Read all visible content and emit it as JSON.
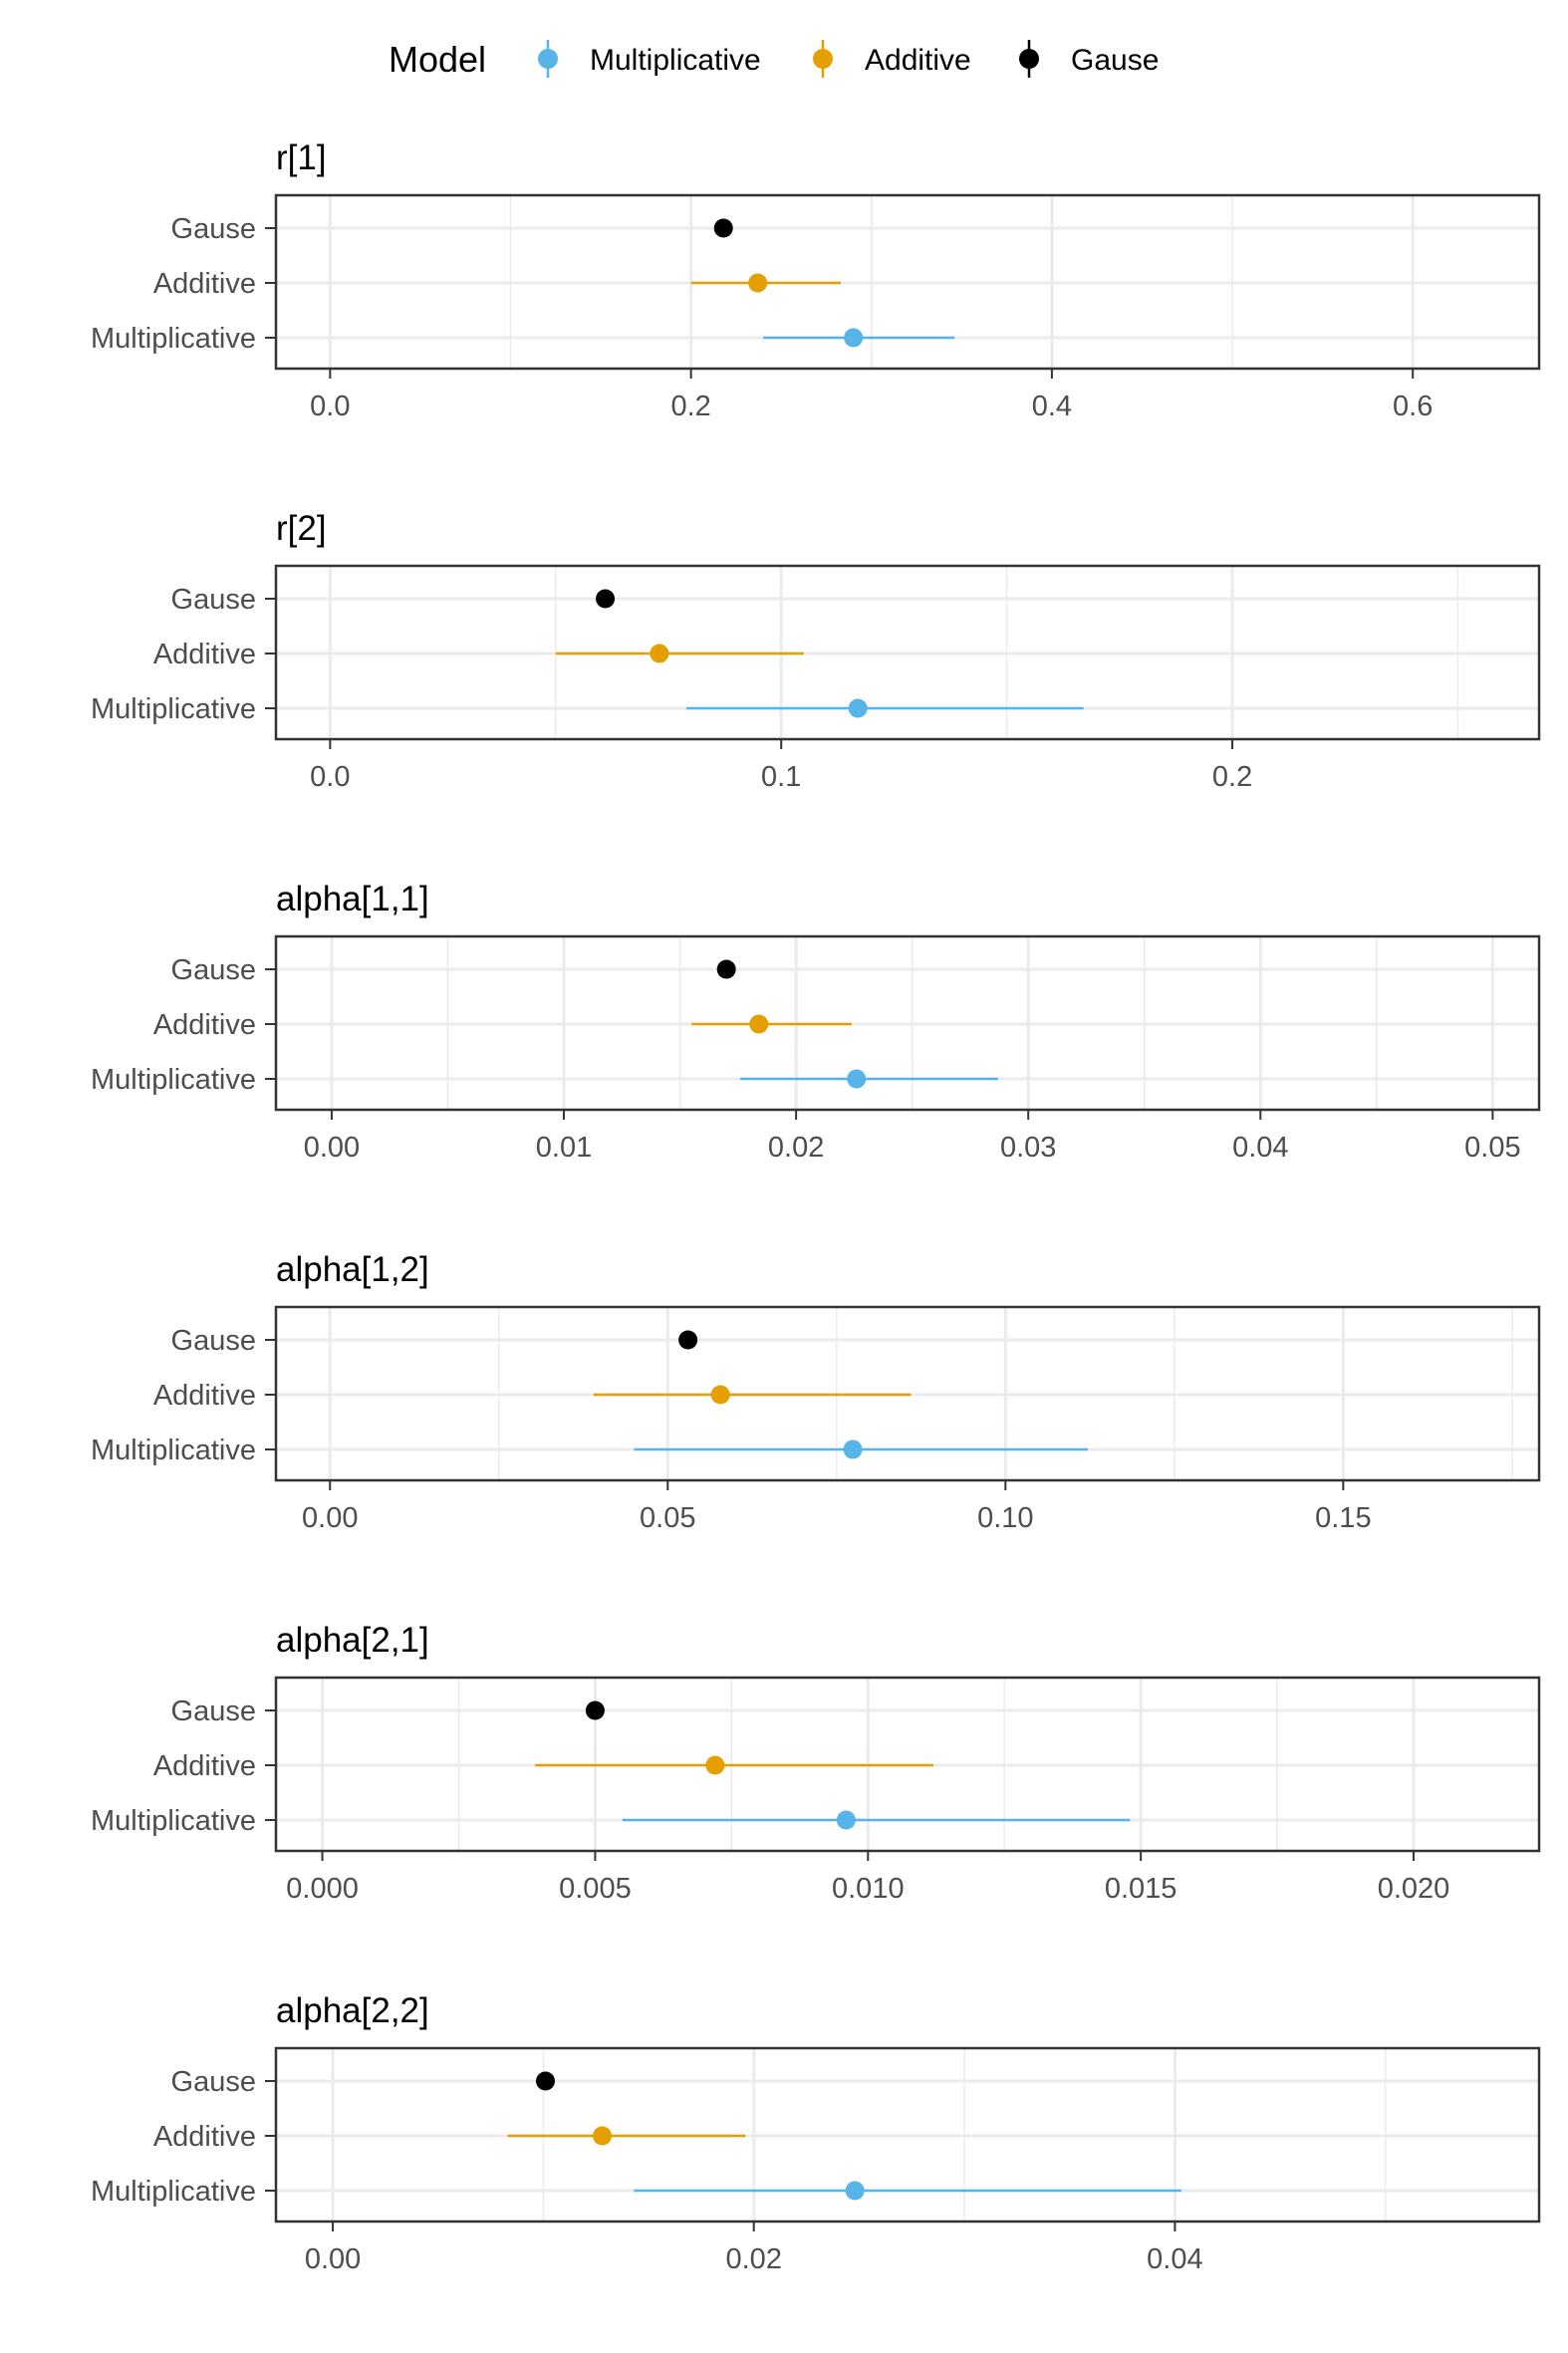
{
  "chart_data": {
    "type": "forest",
    "legend": {
      "title": "Model",
      "position": "top",
      "entries": [
        {
          "name": "Multiplicative",
          "color": "#56B4E9"
        },
        {
          "name": "Additive",
          "color": "#E69F00"
        },
        {
          "name": "Gause",
          "color": "#000000"
        }
      ]
    },
    "categories": [
      "Gause",
      "Additive",
      "Multiplicative"
    ],
    "panels": [
      {
        "title": "r[1]",
        "xlim": [
          -0.03,
          0.67
        ],
        "ticks": [
          0.0,
          0.2,
          0.4,
          0.6
        ],
        "tick_labels": [
          "0.0",
          "0.2",
          "0.4",
          "0.6"
        ],
        "minor_ticks": [
          0.1,
          0.3,
          0.5
        ],
        "estimates": [
          {
            "model": "Gause",
            "value": 0.218,
            "low": null,
            "high": null
          },
          {
            "model": "Additive",
            "value": 0.237,
            "low": 0.2,
            "high": 0.283
          },
          {
            "model": "Multiplicative",
            "value": 0.29,
            "low": 0.24,
            "high": 0.346
          }
        ]
      },
      {
        "title": "r[2]",
        "xlim": [
          -0.012,
          0.268
        ],
        "ticks": [
          0.0,
          0.1,
          0.2
        ],
        "tick_labels": [
          "0.0",
          "0.1",
          "0.2"
        ],
        "minor_ticks": [
          0.05,
          0.15,
          0.25
        ],
        "estimates": [
          {
            "model": "Gause",
            "value": 0.061,
            "low": null,
            "high": null
          },
          {
            "model": "Additive",
            "value": 0.073,
            "low": 0.05,
            "high": 0.105
          },
          {
            "model": "Multiplicative",
            "value": 0.117,
            "low": 0.079,
            "high": 0.167
          }
        ]
      },
      {
        "title": "alpha[1,1]",
        "xlim": [
          -0.0024,
          0.052
        ],
        "ticks": [
          0.0,
          0.01,
          0.02,
          0.03,
          0.04,
          0.05
        ],
        "tick_labels": [
          "0.00",
          "0.01",
          "0.02",
          "0.03",
          "0.04",
          "0.05"
        ],
        "minor_ticks": [
          0.005,
          0.015,
          0.025,
          0.035,
          0.045
        ],
        "estimates": [
          {
            "model": "Gause",
            "value": 0.017,
            "low": null,
            "high": null
          },
          {
            "model": "Additive",
            "value": 0.0184,
            "low": 0.0155,
            "high": 0.0224
          },
          {
            "model": "Multiplicative",
            "value": 0.0226,
            "low": 0.0176,
            "high": 0.0287
          }
        ]
      },
      {
        "title": "alpha[1,2]",
        "xlim": [
          -0.008,
          0.179
        ],
        "ticks": [
          0.0,
          0.05,
          0.1,
          0.15
        ],
        "tick_labels": [
          "0.00",
          "0.05",
          "0.10",
          "0.15"
        ],
        "minor_ticks": [
          0.025,
          0.075,
          0.125,
          0.175
        ],
        "estimates": [
          {
            "model": "Gause",
            "value": 0.053,
            "low": null,
            "high": null
          },
          {
            "model": "Additive",
            "value": 0.0578,
            "low": 0.039,
            "high": 0.086
          },
          {
            "model": "Multiplicative",
            "value": 0.0774,
            "low": 0.045,
            "high": 0.1122
          }
        ]
      },
      {
        "title": "alpha[2,1]",
        "xlim": [
          -0.00085,
          0.0223
        ],
        "ticks": [
          0.0,
          0.005,
          0.01,
          0.015,
          0.02
        ],
        "tick_labels": [
          "0.000",
          "0.005",
          "0.010",
          "0.015",
          "0.020"
        ],
        "minor_ticks": [
          0.0025,
          0.0075,
          0.0125,
          0.0175
        ],
        "estimates": [
          {
            "model": "Gause",
            "value": 0.005,
            "low": null,
            "high": null
          },
          {
            "model": "Additive",
            "value": 0.0072,
            "low": 0.0039,
            "high": 0.0112
          },
          {
            "model": "Multiplicative",
            "value": 0.0096,
            "low": 0.0055,
            "high": 0.0148
          }
        ]
      },
      {
        "title": "alpha[2,2]",
        "xlim": [
          -0.0027,
          0.0573
        ],
        "ticks": [
          0.0,
          0.02,
          0.04
        ],
        "tick_labels": [
          "0.00",
          "0.02",
          "0.04"
        ],
        "minor_ticks": [
          0.01,
          0.03,
          0.05
        ],
        "estimates": [
          {
            "model": "Gause",
            "value": 0.0101,
            "low": null,
            "high": null
          },
          {
            "model": "Additive",
            "value": 0.0128,
            "low": 0.0083,
            "high": 0.0196
          },
          {
            "model": "Multiplicative",
            "value": 0.0248,
            "low": 0.0143,
            "high": 0.0403
          }
        ]
      }
    ]
  }
}
